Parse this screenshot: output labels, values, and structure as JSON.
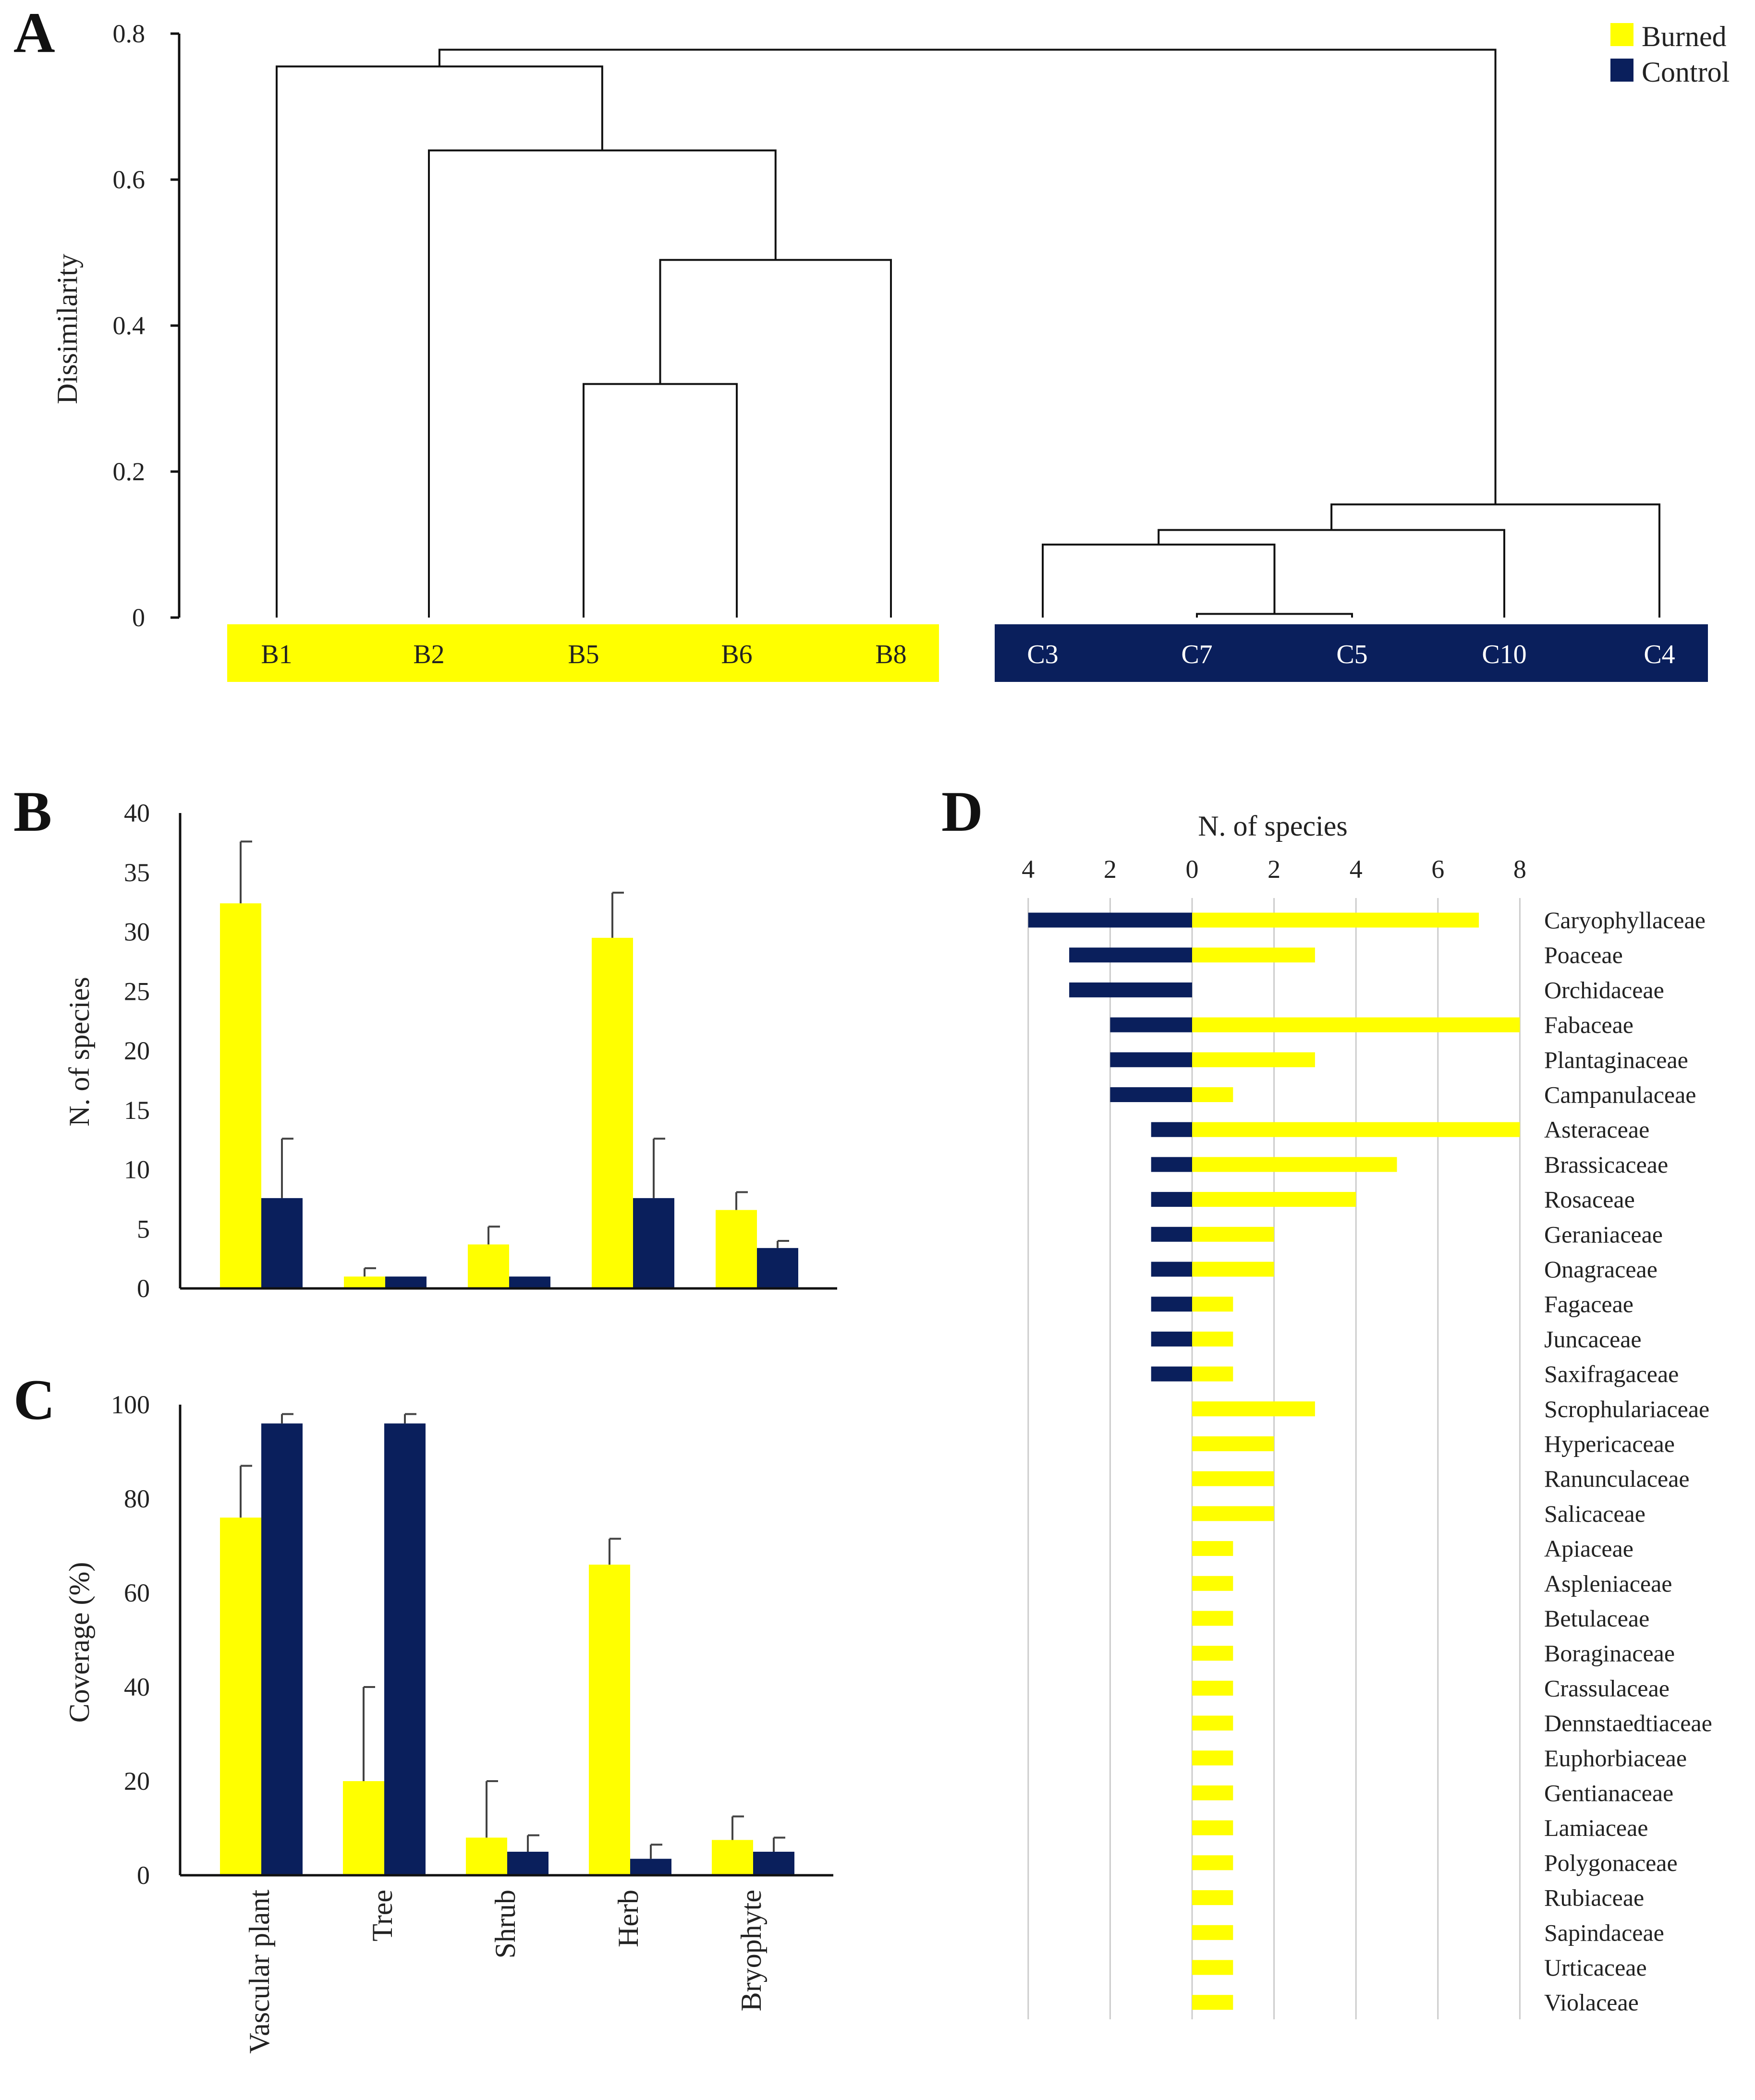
{
  "colors": {
    "burned": "#ffff00",
    "control": "#0a1f5c"
  },
  "legend": {
    "burned": "Burned",
    "control": "Control"
  },
  "panels": {
    "a": "A",
    "b": "B",
    "c": "C",
    "d": "D"
  },
  "chart_data": [
    {
      "panel": "A",
      "type": "dendrogram",
      "ylabel": "Dissimilarity",
      "ylim": [
        0,
        0.8
      ],
      "yticks": [
        "0",
        "0.2",
        "0.4",
        "0.6",
        "0.8"
      ],
      "burned_leaves": [
        "B1",
        "B2",
        "B5",
        "B6",
        "B8"
      ],
      "control_leaves": [
        "C3",
        "C7",
        "C5",
        "C10",
        "C4"
      ],
      "merges": [
        {
          "left": "B5",
          "right": "B6",
          "height": 0.32
        },
        {
          "left": "B5-B6",
          "right": "B8",
          "height": 0.49
        },
        {
          "left": "B2",
          "right": "B5-B6-B8",
          "height": 0.64
        },
        {
          "left": "B1",
          "right": "B2-B5-B6-B8",
          "height": 0.755
        },
        {
          "left": "C7",
          "right": "C5",
          "height": 0.005
        },
        {
          "left": "C3",
          "right": "C7-C5",
          "height": 0.1
        },
        {
          "left": "C3-C7-C5",
          "right": "C10",
          "height": 0.12
        },
        {
          "left": "C3-C7-C5-C10",
          "right": "C4",
          "height": 0.155
        },
        {
          "left": "Burned",
          "right": "Control",
          "height": 0.778
        }
      ]
    },
    {
      "panel": "B",
      "type": "bar",
      "ylabel": "N. of species",
      "ylim": [
        0,
        40
      ],
      "yticks": [
        "0",
        "5",
        "10",
        "15",
        "20",
        "25",
        "30",
        "35",
        "40"
      ],
      "categories": [
        "Vascular plant",
        "Tree",
        "Shrub",
        "Herb",
        "Bryophyte"
      ],
      "series": [
        {
          "name": "Burned",
          "values": [
            32.4,
            1.0,
            3.7,
            29.5,
            6.6
          ],
          "errors": [
            5.2,
            0.7,
            1.5,
            3.8,
            1.5
          ]
        },
        {
          "name": "Control",
          "values": [
            7.6,
            1.0,
            1.0,
            7.6,
            3.4
          ],
          "errors": [
            5.0,
            0.0,
            0.0,
            5.0,
            0.6
          ]
        }
      ]
    },
    {
      "panel": "C",
      "type": "bar",
      "ylabel": "Coverage (%)",
      "ylim": [
        0,
        100
      ],
      "yticks": [
        "0",
        "20",
        "40",
        "60",
        "80",
        "100"
      ],
      "categories": [
        "Vascular plant",
        "Tree",
        "Shrub",
        "Herb",
        "Bryophyte"
      ],
      "series": [
        {
          "name": "Burned",
          "values": [
            76,
            20,
            8,
            66,
            7.5
          ],
          "errors": [
            11,
            20,
            12,
            5.5,
            5
          ]
        },
        {
          "name": "Control",
          "values": [
            96,
            96,
            5,
            3.5,
            5
          ],
          "errors": [
            2,
            2,
            3.5,
            3,
            3
          ]
        }
      ]
    },
    {
      "panel": "D",
      "type": "diverging-bar",
      "title": "N. of species",
      "xticks": [
        "4",
        "2",
        "0",
        "2",
        "4",
        "6",
        "8"
      ],
      "xlim_control": 4,
      "xlim_burned": 8,
      "families": [
        "Caryophyllaceae",
        "Poaceae",
        "Orchidaceae",
        "Fabaceae",
        "Plantaginaceae",
        "Campanulaceae",
        "Asteraceae",
        "Brassicaceae",
        "Rosaceae",
        "Geraniaceae",
        "Onagraceae",
        "Fagaceae",
        "Juncaceae",
        "Saxifragaceae",
        "Scrophulariaceae",
        "Hypericaceae",
        "Ranunculaceae",
        "Salicaceae",
        "Apiaceae",
        "Aspleniaceae",
        "Betulaceae",
        "Boraginaceae",
        "Crassulaceae",
        "Dennstaedtiaceae",
        "Euphorbiaceae",
        "Gentianaceae",
        "Lamiaceae",
        "Polygonaceae",
        "Rubiaceae",
        "Sapindaceae",
        "Urticaceae",
        "Violaceae"
      ],
      "control": [
        4,
        3,
        3,
        2,
        2,
        2,
        1,
        1,
        1,
        1,
        1,
        1,
        1,
        1,
        0,
        0,
        0,
        0,
        0,
        0,
        0,
        0,
        0,
        0,
        0,
        0,
        0,
        0,
        0,
        0,
        0,
        0
      ],
      "burned": [
        7,
        3,
        0,
        8,
        3,
        1,
        8,
        5,
        4,
        2,
        2,
        1,
        1,
        1,
        3,
        2,
        2,
        2,
        1,
        1,
        1,
        1,
        1,
        1,
        1,
        1,
        1,
        1,
        1,
        1,
        1,
        1
      ]
    }
  ]
}
